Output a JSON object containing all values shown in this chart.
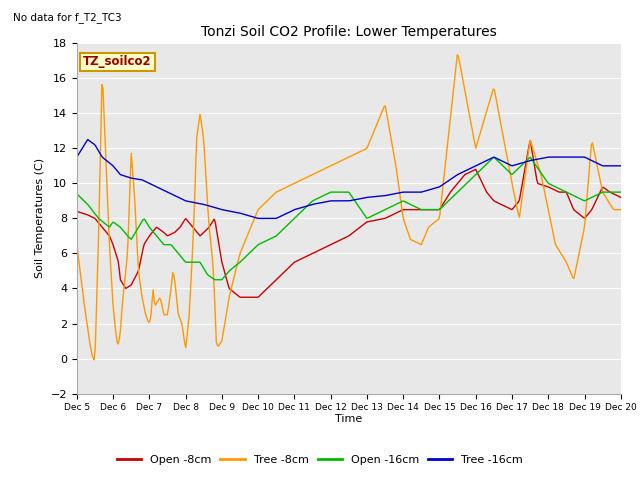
{
  "title": "Tonzi Soil CO2 Profile: Lower Temperatures",
  "no_data_text": "No data for f_T2_TC3",
  "ylabel": "Soil Temperatures (C)",
  "xlabel": "Time",
  "ylim": [
    -2,
    18
  ],
  "box_label": "TZ_soilco2",
  "bg_color": "#e8e8e8",
  "fig_color": "#ffffff",
  "grid_color": "#ffffff",
  "legend_labels": [
    "Open -8cm",
    "Tree -8cm",
    "Open -16cm",
    "Tree -16cm"
  ],
  "line_colors": [
    "#cc0000",
    "#ff9900",
    "#00bb00",
    "#0000cc"
  ],
  "xtick_labels": [
    "Dec 5",
    "Dec 6",
    "Dec 7",
    "Dec 8",
    "Dec 9",
    "Dec 10",
    "Dec 11",
    "Dec 12",
    "Dec 13",
    "Dec 14",
    "Dec 15",
    "Dec 16",
    "Dec 17",
    "Dec 18",
    "Dec 19",
    "Dec 20"
  ],
  "open8_t": [
    0.0,
    0.3,
    0.5,
    0.7,
    0.9,
    1.0,
    1.15,
    1.2,
    1.35,
    1.5,
    1.7,
    1.85,
    2.0,
    2.2,
    2.4,
    2.5,
    2.7,
    2.85,
    3.0,
    3.2,
    3.4,
    3.5,
    3.65,
    3.8,
    4.0,
    4.2,
    4.5,
    5.0,
    5.5,
    6.0,
    6.5,
    7.0,
    7.5,
    8.0,
    8.5,
    9.0,
    9.5,
    10.0,
    10.3,
    10.5,
    10.7,
    11.0,
    11.3,
    11.5,
    12.0,
    12.2,
    12.5,
    12.7,
    13.0,
    13.3,
    13.5,
    13.7,
    14.0,
    14.2,
    14.5,
    14.7,
    15.0
  ],
  "open8_v": [
    8.4,
    8.2,
    8.0,
    7.5,
    7.0,
    6.5,
    5.5,
    4.5,
    4.0,
    4.2,
    5.0,
    6.5,
    7.0,
    7.5,
    7.2,
    7.0,
    7.2,
    7.5,
    8.0,
    7.5,
    7.0,
    7.2,
    7.5,
    8.0,
    5.5,
    4.0,
    3.5,
    3.5,
    4.5,
    5.5,
    6.0,
    6.5,
    7.0,
    7.8,
    8.0,
    8.5,
    8.5,
    8.5,
    9.5,
    10.0,
    10.5,
    10.8,
    9.5,
    9.0,
    8.5,
    9.0,
    12.5,
    10.0,
    9.8,
    9.5,
    9.5,
    8.5,
    8.0,
    8.5,
    9.8,
    9.5,
    9.2
  ],
  "tree8_t": [
    0.0,
    0.2,
    0.35,
    0.42,
    0.48,
    0.52,
    0.55,
    0.6,
    0.65,
    0.7,
    0.8,
    0.9,
    1.0,
    1.05,
    1.1,
    1.15,
    1.2,
    1.25,
    1.4,
    1.5,
    1.6,
    1.7,
    1.8,
    1.85,
    1.9,
    1.95,
    2.0,
    2.05,
    2.1,
    2.15,
    2.3,
    2.4,
    2.5,
    2.6,
    2.65,
    2.7,
    2.75,
    2.8,
    2.9,
    3.0,
    3.1,
    3.15,
    3.2,
    3.25,
    3.3,
    3.4,
    3.5,
    3.6,
    3.65,
    3.7,
    3.75,
    3.8,
    3.85,
    3.9,
    4.0,
    4.2,
    4.5,
    5.0,
    5.5,
    6.0,
    6.5,
    7.0,
    7.5,
    8.0,
    8.3,
    8.5,
    8.8,
    9.0,
    9.2,
    9.5,
    9.7,
    10.0,
    10.5,
    11.0,
    11.5,
    12.0,
    12.2,
    12.5,
    12.8,
    13.0,
    13.2,
    13.5,
    13.7,
    14.0,
    14.2,
    14.5,
    14.8,
    15.0
  ],
  "tree8_v": [
    6.5,
    3.2,
    1.0,
    0.2,
    -0.1,
    1.0,
    3.5,
    7.0,
    11.5,
    16.5,
    11.5,
    6.5,
    3.0,
    2.0,
    1.0,
    0.8,
    1.5,
    3.0,
    6.0,
    11.8,
    9.0,
    5.0,
    3.5,
    3.0,
    2.5,
    2.2,
    2.0,
    2.5,
    4.0,
    3.0,
    3.5,
    2.5,
    2.5,
    4.0,
    5.0,
    4.5,
    3.5,
    2.5,
    2.0,
    0.5,
    2.5,
    4.5,
    6.5,
    9.0,
    12.5,
    14.0,
    12.5,
    9.0,
    7.5,
    6.5,
    5.5,
    3.5,
    0.8,
    0.7,
    1.0,
    3.5,
    6.0,
    8.5,
    9.5,
    10.0,
    10.5,
    11.0,
    11.5,
    12.0,
    13.5,
    14.5,
    11.0,
    8.0,
    6.8,
    6.5,
    7.5,
    8.0,
    17.5,
    12.0,
    15.5,
    10.0,
    8.0,
    12.5,
    10.5,
    8.5,
    6.5,
    5.5,
    4.5,
    7.5,
    12.5,
    9.5,
    8.5,
    8.5
  ],
  "open16_t": [
    0.0,
    0.3,
    0.6,
    0.9,
    1.0,
    1.2,
    1.4,
    1.5,
    1.7,
    1.85,
    2.0,
    2.2,
    2.4,
    2.6,
    2.8,
    3.0,
    3.2,
    3.4,
    3.6,
    3.8,
    4.0,
    4.2,
    4.5,
    5.0,
    5.5,
    6.0,
    6.5,
    7.0,
    7.5,
    8.0,
    8.5,
    9.0,
    9.5,
    10.0,
    10.5,
    11.0,
    11.5,
    12.0,
    12.5,
    13.0,
    13.5,
    14.0,
    14.5,
    15.0
  ],
  "open16_v": [
    9.4,
    8.8,
    8.0,
    7.5,
    7.8,
    7.5,
    7.0,
    6.8,
    7.5,
    8.0,
    7.5,
    7.0,
    6.5,
    6.5,
    6.0,
    5.5,
    5.5,
    5.5,
    4.8,
    4.5,
    4.5,
    5.0,
    5.5,
    6.5,
    7.0,
    8.0,
    9.0,
    9.5,
    9.5,
    8.0,
    8.5,
    9.0,
    8.5,
    8.5,
    9.5,
    10.5,
    11.5,
    10.5,
    11.5,
    10.0,
    9.5,
    9.0,
    9.5,
    9.5
  ],
  "tree16_t": [
    0.0,
    0.3,
    0.5,
    0.7,
    1.0,
    1.2,
    1.5,
    1.8,
    2.0,
    2.5,
    3.0,
    3.5,
    4.0,
    4.5,
    5.0,
    5.5,
    6.0,
    6.5,
    7.0,
    7.5,
    8.0,
    8.5,
    9.0,
    9.5,
    10.0,
    10.5,
    11.0,
    11.5,
    12.0,
    12.5,
    13.0,
    13.5,
    14.0,
    14.5,
    15.0
  ],
  "tree16_v": [
    11.5,
    12.5,
    12.2,
    11.5,
    11.0,
    10.5,
    10.3,
    10.2,
    10.0,
    9.5,
    9.0,
    8.8,
    8.5,
    8.3,
    8.0,
    8.0,
    8.5,
    8.8,
    9.0,
    9.0,
    9.2,
    9.3,
    9.5,
    9.5,
    9.8,
    10.5,
    11.0,
    11.5,
    11.0,
    11.3,
    11.5,
    11.5,
    11.5,
    11.0,
    11.0
  ]
}
